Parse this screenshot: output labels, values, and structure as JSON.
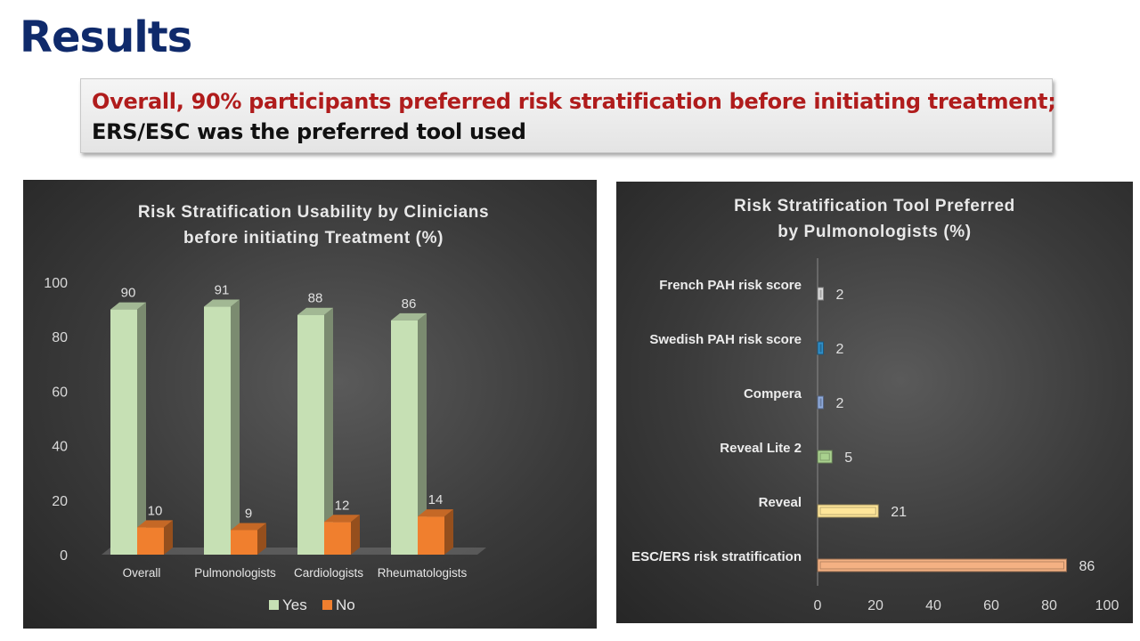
{
  "slide": {
    "title": "Results",
    "callout_line1": "Overall, 90% participants preferred risk stratification before initiating treatment;",
    "callout_line2": "ERS/ESC was the preferred tool used"
  },
  "chart_data": [
    {
      "type": "bar",
      "title_lines": [
        "Risk Stratification  Usability by Clinicians",
        "before initiating  Treatment (%)"
      ],
      "categories": [
        "Overall",
        "Pulmonologists",
        "Cardiologists",
        "Rheumatologists"
      ],
      "series": [
        {
          "name": "Yes",
          "values": [
            90,
            91,
            88,
            86
          ],
          "color": "#c6e0b4"
        },
        {
          "name": "No",
          "values": [
            10,
            9,
            12,
            14
          ],
          "color": "#f07f2e"
        }
      ],
      "ylim": [
        0,
        100
      ],
      "yticks": [
        0,
        20,
        40,
        60,
        80,
        100
      ],
      "legend_position": "bottom",
      "grid": false
    },
    {
      "type": "bar",
      "orientation": "horizontal",
      "title_lines": [
        "Risk Stratification  Tool Preferred",
        "by Pulmonologists (%)"
      ],
      "categories": [
        "French PAH risk score",
        "Swedish PAH risk score",
        "Compera",
        "Reveal Lite 2",
        "Reveal",
        "ESC/ERS risk stratification"
      ],
      "values": [
        2,
        2,
        2,
        5,
        21,
        86
      ],
      "colors": [
        "#d9d9d9",
        "#2f8fc9",
        "#8faadc",
        "#a9d18e",
        "#ffe699",
        "#f4b183"
      ],
      "xlim": [
        0,
        100
      ],
      "xticks": [
        0,
        20,
        40,
        60,
        80,
        100
      ],
      "grid": false
    }
  ]
}
